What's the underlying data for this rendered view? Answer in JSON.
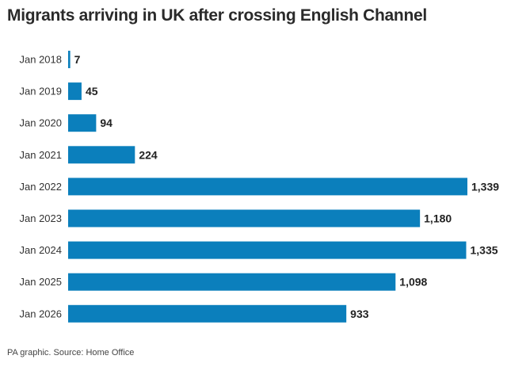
{
  "chart_data": {
    "type": "bar",
    "orientation": "horizontal",
    "title": "Migrants arriving in UK after crossing English Channel",
    "categories": [
      "Jan 2018",
      "Jan 2019",
      "Jan 2020",
      "Jan 2021",
      "Jan 2022",
      "Jan 2023",
      "Jan 2024",
      "Jan 2025",
      "Jan 2026"
    ],
    "values": [
      7,
      45,
      94,
      224,
      1339,
      1180,
      1335,
      1098,
      933
    ],
    "labels": [
      "7",
      "45",
      "94",
      "224",
      "1,339",
      "1,180",
      "1,335",
      "1,098",
      "933"
    ],
    "xlim": [
      0,
      1339
    ],
    "grid": false,
    "bar_color": "#0b7fbc",
    "xlabel": "",
    "ylabel": ""
  },
  "footer": "PA graphic. Source: Home Office"
}
